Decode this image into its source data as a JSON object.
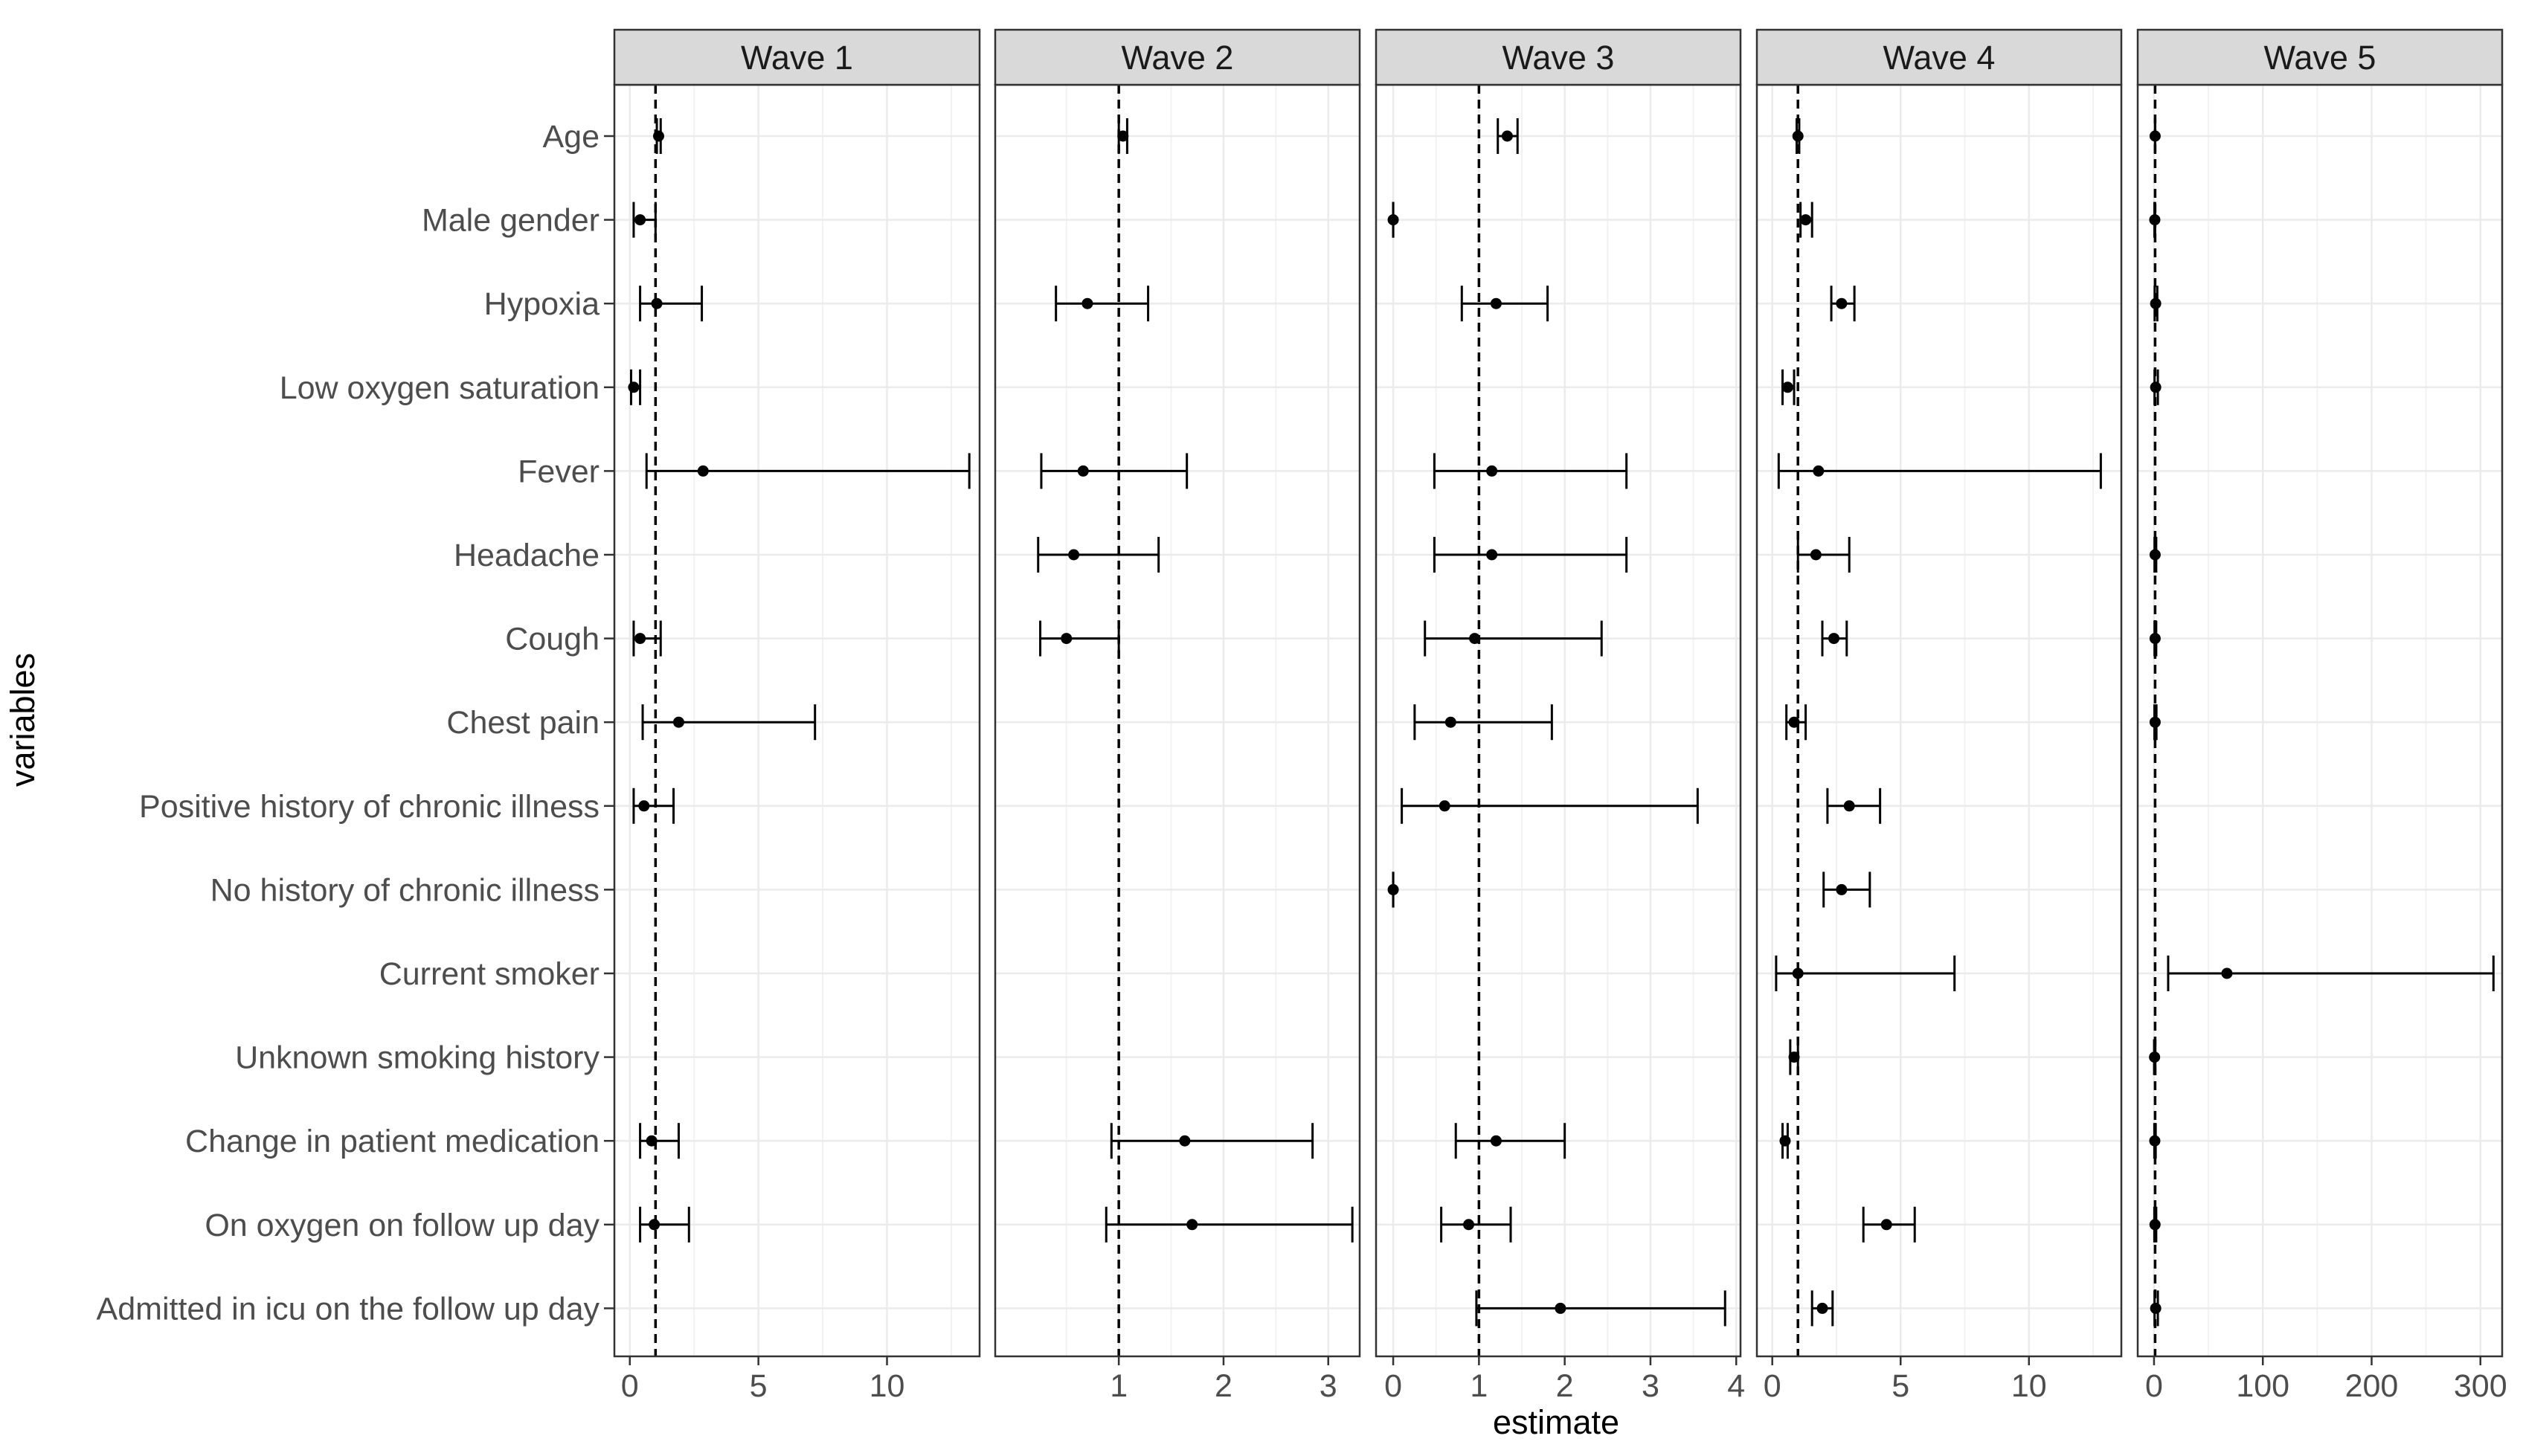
{
  "chart_data": {
    "type": "forest-plot",
    "xlabel": "estimate",
    "ylabel": "variables",
    "reference_line": 1,
    "variables": [
      "Age",
      "Male gender",
      "Hypoxia",
      "Low oxygen saturation",
      "Fever",
      "Headache",
      "Cough",
      "Chest pain",
      "Positive history of chronic illness",
      "No history of chronic illness",
      "Current smoker",
      "Unknown smoking history",
      "Change in patient medication",
      "On oxygen on follow up day",
      "Admitted in icu on the follow up day"
    ],
    "panels": [
      {
        "name": "Wave 1",
        "xlim": [
          -0.6,
          13.6
        ],
        "ticks": [
          0,
          5,
          10
        ],
        "tick_labels": [
          "0",
          "5",
          "10"
        ],
        "estimates": [
          {
            "variable": "Age",
            "est": 1.12,
            "low": 1.05,
            "high": 1.2
          },
          {
            "variable": "Male gender",
            "est": 0.4,
            "low": 0.15,
            "high": 1.0
          },
          {
            "variable": "Hypoxia",
            "est": 1.05,
            "low": 0.4,
            "high": 2.8
          },
          {
            "variable": "Low oxygen saturation",
            "est": 0.15,
            "low": 0.05,
            "high": 0.4
          },
          {
            "variable": "Fever",
            "est": 2.85,
            "low": 0.65,
            "high": 13.2
          },
          {
            "variable": "Cough",
            "est": 0.4,
            "low": 0.15,
            "high": 1.2
          },
          {
            "variable": "Chest pain",
            "est": 1.9,
            "low": 0.5,
            "high": 7.2
          },
          {
            "variable": "Positive history of chronic illness",
            "est": 0.55,
            "low": 0.15,
            "high": 1.7
          },
          {
            "variable": "Change in patient medication",
            "est": 0.85,
            "low": 0.4,
            "high": 1.9
          },
          {
            "variable": "On oxygen on follow up day",
            "est": 0.95,
            "low": 0.4,
            "high": 2.3
          }
        ]
      },
      {
        "name": "Wave 2",
        "xlim": [
          -0.18,
          3.3
        ],
        "ticks": [
          1,
          2,
          3
        ],
        "tick_labels": [
          "1",
          "2",
          "3"
        ],
        "estimates": [
          {
            "variable": "Age",
            "est": 1.04,
            "low": 1.0,
            "high": 1.08
          },
          {
            "variable": "Hypoxia",
            "est": 0.7,
            "low": 0.4,
            "high": 1.28
          },
          {
            "variable": "Fever",
            "est": 0.66,
            "low": 0.26,
            "high": 1.65
          },
          {
            "variable": "Headache",
            "est": 0.57,
            "low": 0.23,
            "high": 1.38
          },
          {
            "variable": "Cough",
            "est": 0.5,
            "low": 0.25,
            "high": 1.0
          },
          {
            "variable": "Change in patient medication",
            "est": 1.63,
            "low": 0.93,
            "high": 2.85
          },
          {
            "variable": "On oxygen on follow up day",
            "est": 1.7,
            "low": 0.88,
            "high": 3.23
          }
        ]
      },
      {
        "name": "Wave 3",
        "xlim": [
          -0.2,
          4.05
        ],
        "ticks": [
          0,
          1,
          2,
          3,
          4
        ],
        "tick_labels": [
          "0",
          "1",
          "2",
          "3",
          "4"
        ],
        "estimates": [
          {
            "variable": "Age",
            "est": 1.33,
            "low": 1.22,
            "high": 1.45
          },
          {
            "variable": "Male gender",
            "est": 0.0,
            "low": 0.0,
            "high": 0.0
          },
          {
            "variable": "Hypoxia",
            "est": 1.2,
            "low": 0.8,
            "high": 1.8
          },
          {
            "variable": "Fever",
            "est": 1.15,
            "low": 0.48,
            "high": 2.72
          },
          {
            "variable": "Headache",
            "est": 1.15,
            "low": 0.48,
            "high": 2.72
          },
          {
            "variable": "Cough",
            "est": 0.95,
            "low": 0.37,
            "high": 2.43
          },
          {
            "variable": "Chest pain",
            "est": 0.67,
            "low": 0.25,
            "high": 1.85
          },
          {
            "variable": "Positive history of chronic illness",
            "est": 0.6,
            "low": 0.1,
            "high": 3.55
          },
          {
            "variable": "No history of chronic illness",
            "est": 0.0,
            "low": 0.0,
            "high": 0.0
          },
          {
            "variable": "Change in patient medication",
            "est": 1.2,
            "low": 0.73,
            "high": 2.0
          },
          {
            "variable": "On oxygen on follow up day",
            "est": 0.88,
            "low": 0.56,
            "high": 1.37
          },
          {
            "variable": "Admitted in icu on the follow up day",
            "est": 1.95,
            "low": 0.97,
            "high": 3.87
          }
        ]
      },
      {
        "name": "Wave 4",
        "xlim": [
          -0.6,
          13.6
        ],
        "ticks": [
          0,
          5,
          10
        ],
        "tick_labels": [
          "0",
          "5",
          "10"
        ],
        "estimates": [
          {
            "variable": "Age",
            "est": 1.0,
            "low": 0.95,
            "high": 1.05
          },
          {
            "variable": "Male gender",
            "est": 1.3,
            "low": 1.1,
            "high": 1.55
          },
          {
            "variable": "Hypoxia",
            "est": 2.7,
            "low": 2.3,
            "high": 3.2
          },
          {
            "variable": "Low oxygen saturation",
            "est": 0.6,
            "low": 0.4,
            "high": 0.85
          },
          {
            "variable": "Fever",
            "est": 1.8,
            "low": 0.25,
            "high": 12.8
          },
          {
            "variable": "Headache",
            "est": 1.7,
            "low": 1.0,
            "high": 3.0
          },
          {
            "variable": "Cough",
            "est": 2.4,
            "low": 1.95,
            "high": 2.9
          },
          {
            "variable": "Chest pain",
            "est": 0.85,
            "low": 0.55,
            "high": 1.3
          },
          {
            "variable": "Positive history of chronic illness",
            "est": 3.0,
            "low": 2.15,
            "high": 4.2
          },
          {
            "variable": "No history of chronic illness",
            "est": 2.7,
            "low": 2.0,
            "high": 3.8
          },
          {
            "variable": "Current smoker",
            "est": 1.0,
            "low": 0.15,
            "high": 7.1
          },
          {
            "variable": "Unknown smoking history",
            "est": 0.85,
            "low": 0.7,
            "high": 1.0
          },
          {
            "variable": "Change in patient medication",
            "est": 0.5,
            "low": 0.4,
            "high": 0.6
          },
          {
            "variable": "On oxygen on follow up day",
            "est": 4.45,
            "low": 3.55,
            "high": 5.55
          },
          {
            "variable": "Admitted in icu on the follow up day",
            "est": 1.95,
            "low": 1.55,
            "high": 2.35
          }
        ]
      },
      {
        "name": "Wave 5",
        "xlim": [
          -15,
          320
        ],
        "ticks": [
          0,
          100,
          200,
          300
        ],
        "tick_labels": [
          "0",
          "100",
          "200",
          "300"
        ],
        "estimates": [
          {
            "variable": "Age",
            "est": 1.0,
            "low": 0.9,
            "high": 1.1
          },
          {
            "variable": "Male gender",
            "est": 0.7,
            "low": 0.4,
            "high": 1.0
          },
          {
            "variable": "Hypoxia",
            "est": 1.5,
            "low": 0.6,
            "high": 3.0
          },
          {
            "variable": "Low oxygen saturation",
            "est": 1.5,
            "low": 0.5,
            "high": 3.5
          },
          {
            "variable": "Headache",
            "est": 1.0,
            "low": 0.5,
            "high": 2.0
          },
          {
            "variable": "Cough",
            "est": 1.0,
            "low": 0.5,
            "high": 2.0
          },
          {
            "variable": "Chest pain",
            "est": 1.0,
            "low": 0.4,
            "high": 2.2
          },
          {
            "variable": "Current smoker",
            "est": 67,
            "low": 13,
            "high": 312
          },
          {
            "variable": "Unknown smoking history",
            "est": 0.5,
            "low": 0.1,
            "high": 1.2
          },
          {
            "variable": "Change in patient medication",
            "est": 0.7,
            "low": 0.3,
            "high": 1.5
          },
          {
            "variable": "On oxygen on follow up day",
            "est": 0.9,
            "low": 0.3,
            "high": 2.0
          },
          {
            "variable": "Admitted in icu on the follow up day",
            "est": 1.5,
            "low": 0.5,
            "high": 3.5
          }
        ]
      }
    ]
  }
}
